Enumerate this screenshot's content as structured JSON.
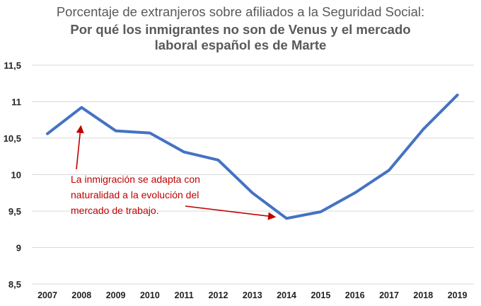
{
  "chart_data": {
    "type": "line",
    "title": "Porcentaje de extranjeros sobre afiliados a la Seguridad Social:",
    "subtitle_lines": [
      "Por qué los inmigrantes no son de Venus y el mercado",
      "laboral español es de Marte"
    ],
    "xlabel": "",
    "ylabel": "",
    "x": [
      "2007",
      "2008",
      "2009",
      "2010",
      "2011",
      "2012",
      "2013",
      "2014",
      "2015",
      "2016",
      "2017",
      "2018",
      "2019"
    ],
    "series": [
      {
        "values": [
          10.56,
          10.92,
          10.6,
          10.57,
          10.31,
          10.2,
          9.75,
          9.4,
          9.49,
          9.75,
          10.06,
          10.62,
          11.09
        ]
      }
    ],
    "ylim": [
      8.5,
      11.5
    ],
    "yticks": [
      8.5,
      9,
      9.5,
      10,
      10.5,
      11,
      11.5
    ],
    "ytick_labels": [
      "8,5",
      "9",
      "9,5",
      "10",
      "10,5",
      "11",
      "11,5"
    ],
    "grid": true,
    "legend": "none",
    "line_color": "#4472c4",
    "annotation": {
      "lines": [
        "La inmigración se adapta con",
        "naturalidad a la evolución del",
        "mercado de trabajo."
      ],
      "color": "#c00000",
      "points_to": [
        "2008",
        "2014"
      ]
    }
  }
}
